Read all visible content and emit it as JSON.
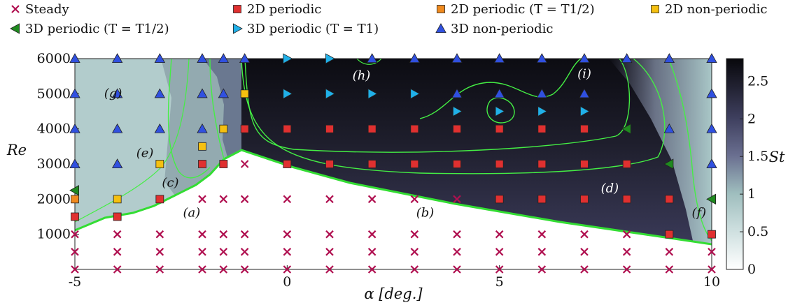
{
  "chart_data": {
    "type": "scatter",
    "title": "",
    "xlabel": "α [deg.]",
    "ylabel": "Re",
    "colorbar_label": "St",
    "xlim": [
      -5,
      10
    ],
    "ylim": [
      0,
      6000
    ],
    "x_ticks": [
      -5,
      0,
      5,
      10
    ],
    "y_ticks": [
      1000,
      2000,
      3000,
      4000,
      5000,
      6000
    ],
    "colorbar_ticks": [
      0,
      0.5,
      1,
      1.5,
      2,
      2.5
    ],
    "colorbar_range": [
      0,
      2.8
    ],
    "legend_position": "top",
    "series": [
      {
        "name": "Steady",
        "marker": "x",
        "color": "#b01050",
        "points": [
          [
            -5,
            0
          ],
          [
            -4,
            0
          ],
          [
            -3,
            0
          ],
          [
            -2,
            0
          ],
          [
            -1.5,
            0
          ],
          [
            -1,
            0
          ],
          [
            0,
            0
          ],
          [
            1,
            0
          ],
          [
            2,
            0
          ],
          [
            3,
            0
          ],
          [
            4,
            0
          ],
          [
            5,
            0
          ],
          [
            6,
            0
          ],
          [
            7,
            0
          ],
          [
            8,
            0
          ],
          [
            9,
            0
          ],
          [
            10,
            0
          ],
          [
            -5,
            500
          ],
          [
            -4,
            500
          ],
          [
            -3,
            500
          ],
          [
            -2,
            500
          ],
          [
            -1.5,
            500
          ],
          [
            -1,
            500
          ],
          [
            0,
            500
          ],
          [
            1,
            500
          ],
          [
            2,
            500
          ],
          [
            3,
            500
          ],
          [
            4,
            500
          ],
          [
            5,
            500
          ],
          [
            6,
            500
          ],
          [
            7,
            500
          ],
          [
            8,
            500
          ],
          [
            9,
            500
          ],
          [
            10,
            500
          ],
          [
            -5,
            1000
          ],
          [
            -4,
            1000
          ],
          [
            -3,
            1000
          ],
          [
            -2,
            1000
          ],
          [
            -1.5,
            1000
          ],
          [
            -1,
            1000
          ],
          [
            0,
            1000
          ],
          [
            1,
            1000
          ],
          [
            2,
            1000
          ],
          [
            3,
            1000
          ],
          [
            4,
            1000
          ],
          [
            5,
            1000
          ],
          [
            6,
            1000
          ],
          [
            7,
            1000
          ],
          [
            8,
            1000
          ],
          [
            -2,
            2000
          ],
          [
            -1.5,
            2000
          ],
          [
            -1,
            2000
          ],
          [
            0,
            2000
          ],
          [
            1,
            2000
          ],
          [
            2,
            2000
          ],
          [
            3,
            2000
          ],
          [
            4,
            2000
          ],
          [
            -1,
            3000
          ]
        ]
      },
      {
        "name": "2D periodic",
        "marker": "square",
        "color": "#e03030",
        "points": [
          [
            -5,
            1500
          ],
          [
            -4,
            1500
          ],
          [
            -3,
            2000
          ],
          [
            -2,
            3000
          ],
          [
            -1.5,
            3000
          ],
          [
            -1,
            4000
          ],
          [
            0,
            3000
          ],
          [
            1,
            3000
          ],
          [
            2,
            3000
          ],
          [
            3,
            3000
          ],
          [
            4,
            3000
          ],
          [
            5,
            3000
          ],
          [
            6,
            3000
          ],
          [
            7,
            3000
          ],
          [
            8,
            3000
          ],
          [
            0,
            4000
          ],
          [
            1,
            4000
          ],
          [
            2,
            4000
          ],
          [
            3,
            4000
          ],
          [
            4,
            4000
          ],
          [
            5,
            4000
          ],
          [
            6,
            4000
          ],
          [
            7,
            4000
          ],
          [
            5,
            2000
          ],
          [
            6,
            2000
          ],
          [
            7,
            2000
          ],
          [
            8,
            2000
          ],
          [
            9,
            2000
          ],
          [
            9,
            1000
          ],
          [
            10,
            1000
          ]
        ]
      },
      {
        "name": "2D periodic (T = T1/2)",
        "marker": "square",
        "color": "#f08a1e",
        "points": [
          [
            -5,
            2000
          ]
        ]
      },
      {
        "name": "2D non-periodic",
        "marker": "square",
        "color": "#f5c010",
        "points": [
          [
            -4,
            2000
          ],
          [
            -3,
            3000
          ],
          [
            -2,
            3500
          ],
          [
            -1.5,
            4000
          ],
          [
            -1,
            5000
          ]
        ]
      },
      {
        "name": "3D periodic (T = T1/2)",
        "marker": "triangle-left",
        "color": "#1f8a1f",
        "points": [
          [
            -5,
            2250
          ],
          [
            8,
            4000
          ],
          [
            9,
            3000
          ],
          [
            10,
            2000
          ]
        ]
      },
      {
        "name": "3D periodic (T = T1)",
        "marker": "triangle-right",
        "color": "#20b0e8",
        "points": [
          [
            0,
            6000
          ],
          [
            1,
            6000
          ],
          [
            0,
            5000
          ],
          [
            1,
            5000
          ],
          [
            2,
            5000
          ],
          [
            3,
            5000
          ],
          [
            4,
            4500
          ],
          [
            5,
            4500
          ],
          [
            6,
            4500
          ],
          [
            7,
            4500
          ]
        ]
      },
      {
        "name": "3D non-periodic",
        "marker": "triangle-up",
        "color": "#3050e0",
        "points": [
          [
            -5,
            6000
          ],
          [
            -4,
            6000
          ],
          [
            -3,
            6000
          ],
          [
            -2,
            6000
          ],
          [
            -1.5,
            6000
          ],
          [
            -1,
            6000
          ],
          [
            2,
            6000
          ],
          [
            3,
            6000
          ],
          [
            4,
            6000
          ],
          [
            5,
            6000
          ],
          [
            6,
            6000
          ],
          [
            7,
            6000
          ],
          [
            8,
            6000
          ],
          [
            9,
            6000
          ],
          [
            10,
            6000
          ],
          [
            -5,
            5000
          ],
          [
            -4,
            5000
          ],
          [
            -3,
            5000
          ],
          [
            -2,
            5000
          ],
          [
            -1.5,
            5000
          ],
          [
            4,
            5000
          ],
          [
            5,
            5000
          ],
          [
            6,
            5000
          ],
          [
            7,
            5000
          ],
          [
            10,
            5000
          ],
          [
            -5,
            4000
          ],
          [
            -4,
            4000
          ],
          [
            -3,
            4000
          ],
          [
            -2,
            4000
          ],
          [
            9,
            4000
          ],
          [
            10,
            4000
          ],
          [
            -5,
            3000
          ],
          [
            -4,
            3000
          ],
          [
            10,
            3000
          ]
        ]
      }
    ],
    "annotations": [
      {
        "text": "(a)",
        "x": -2.25,
        "y": 1500,
        "style": "dark"
      },
      {
        "text": "(b)",
        "x": 3.25,
        "y": 1500,
        "style": "dark"
      },
      {
        "text": "(c)",
        "x": -2.75,
        "y": 2350,
        "style": "dark"
      },
      {
        "text": "(d)",
        "x": 7.6,
        "y": 2200,
        "style": "light"
      },
      {
        "text": "(e)",
        "x": -3.35,
        "y": 3200,
        "style": "dark"
      },
      {
        "text": "(f)",
        "x": 9.7,
        "y": 1500,
        "style": "dark"
      },
      {
        "text": "(g)",
        "x": -4.1,
        "y": 4900,
        "style": "dark"
      },
      {
        "text": "(h)",
        "x": 1.75,
        "y": 5400,
        "style": "light"
      },
      {
        "text": "(i)",
        "x": 7,
        "y": 5450,
        "style": "light"
      }
    ]
  }
}
